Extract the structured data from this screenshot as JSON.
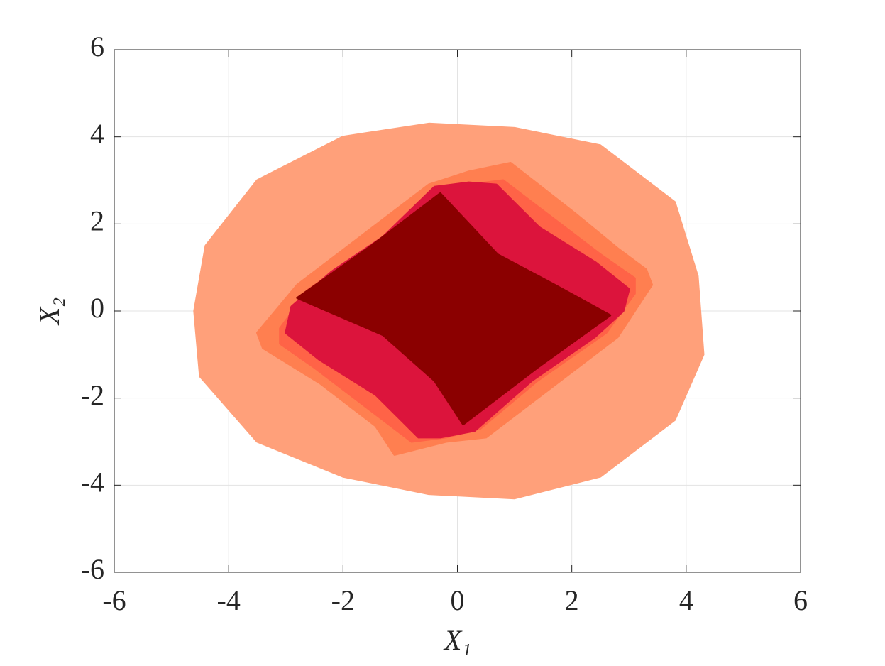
{
  "chart_data": {
    "type": "scatter",
    "xlabel": "X₁",
    "ylabel": "X₂",
    "xlim": [
      -6,
      6
    ],
    "ylim": [
      -6,
      6
    ],
    "xticks": [
      -6,
      -4,
      -2,
      0,
      2,
      4,
      6
    ],
    "yticks": [
      -6,
      -4,
      -2,
      0,
      2,
      4,
      6
    ],
    "grid": true,
    "series": [
      {
        "color": "#ffa07a",
        "x": [
          -4.6,
          -4.4,
          -3.5,
          -2.0,
          -0.5,
          1.0,
          2.5,
          3.8,
          4.2,
          4.3,
          3.8,
          2.5,
          1.0,
          -0.5,
          -2.0,
          -3.5,
          -4.5
        ],
        "y": [
          0.0,
          1.5,
          3.0,
          4.0,
          4.3,
          4.2,
          3.8,
          2.5,
          0.8,
          -1.0,
          -2.5,
          -3.8,
          -4.3,
          -4.2,
          -3.8,
          -3.0,
          -1.5
        ]
      },
      {
        "color": "#ff7f50",
        "x": [
          0.93,
          2.05,
          2.8,
          3.3,
          3.4,
          2.8,
          1.6,
          0.5,
          -0.2,
          -1.1,
          -1.43,
          -2.4,
          -3.4,
          -3.5,
          -2.8,
          -1.6,
          -0.5,
          0.2
        ],
        "y": [
          3.4,
          2.25,
          1.44,
          0.95,
          0.6,
          -0.6,
          -1.8,
          -2.9,
          -3.0,
          -3.3,
          -2.64,
          -1.66,
          -0.85,
          -0.5,
          0.6,
          1.8,
          2.9,
          3.2
        ]
      },
      {
        "color": "#ff6347",
        "x": [
          0.8,
          1.7,
          2.5,
          3.1,
          3.1,
          2.6,
          1.4,
          0.4,
          -0.2,
          -0.8,
          -1.7,
          -2.5,
          -3.1,
          -3.1,
          -2.6,
          -1.4,
          -0.4,
          0.2
        ],
        "y": [
          3.0,
          2.1,
          1.3,
          0.75,
          0.4,
          -0.5,
          -1.6,
          -2.7,
          -2.9,
          -3.0,
          -2.1,
          -1.3,
          -0.75,
          -0.4,
          0.5,
          1.6,
          2.7,
          2.9
        ]
      },
      {
        "color": "#dc143c",
        "x": [
          0.68,
          1.43,
          2.42,
          3.0,
          2.9,
          2.4,
          1.3,
          0.3,
          -0.3,
          -0.68,
          -1.43,
          -2.42,
          -3.0,
          -2.9,
          -2.2,
          -1.3,
          -0.4,
          0.2
        ],
        "y": [
          2.9,
          1.92,
          1.11,
          0.5,
          0.0,
          -0.6,
          -1.6,
          -2.75,
          -2.9,
          -2.9,
          -1.92,
          -1.11,
          -0.5,
          0.1,
          0.9,
          1.7,
          2.85,
          2.95
        ]
      },
      {
        "color": "#8b0000",
        "x": [
          -2.8,
          -1.5,
          -0.3,
          0.2,
          0.7,
          1.7,
          2.67,
          1.4,
          0.1,
          -0.4,
          -1.3
        ],
        "y": [
          0.3,
          1.5,
          2.7,
          2.0,
          1.3,
          0.6,
          -0.1,
          -1.3,
          -2.6,
          -1.6,
          -0.55
        ]
      }
    ]
  }
}
